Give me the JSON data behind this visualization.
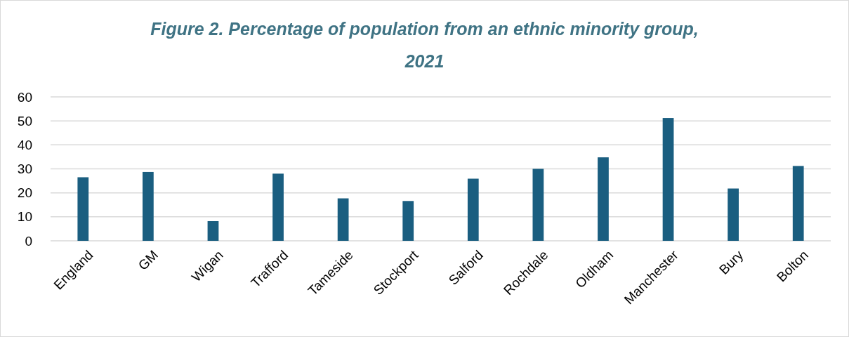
{
  "chart_data": {
    "type": "bar",
    "title": "Figure 2. Percentage of population from an ethnic minority group, 2021",
    "categories": [
      "England",
      "GM",
      "Wigan",
      "Trafford",
      "Tameside",
      "Stockport",
      "Salford",
      "Rochdale",
      "Oldham",
      "Manchester",
      "Bury",
      "Bolton"
    ],
    "values": [
      26.5,
      28.7,
      8.2,
      28,
      17.7,
      16.6,
      25.9,
      30,
      34.8,
      51.2,
      21.8,
      31.2
    ],
    "color": "#1a5e80",
    "ylim": [
      0,
      60
    ],
    "yticks": [
      0,
      10,
      20,
      30,
      40,
      50,
      60
    ],
    "grid": "y"
  }
}
